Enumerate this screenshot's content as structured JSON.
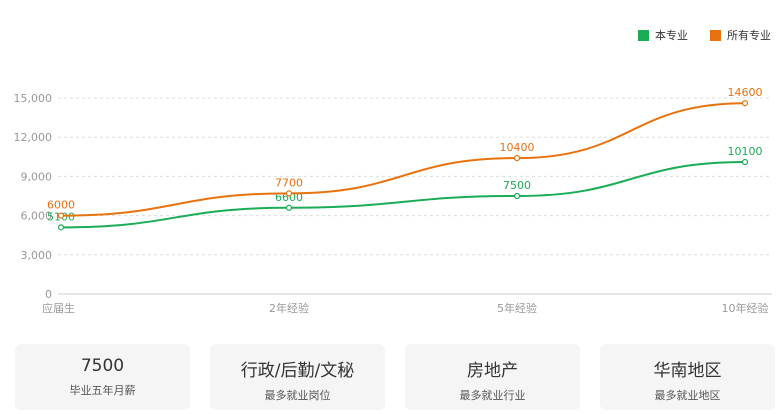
{
  "colors": {
    "series_this": "#1bad56",
    "series_all": "#e8720f",
    "grid": "#dddddd",
    "axis_text": "#999999"
  },
  "legend": {
    "items": [
      {
        "label": "本专业",
        "color": "#1bad56"
      },
      {
        "label": "所有专业",
        "color": "#e8720f"
      }
    ]
  },
  "chart_data": {
    "type": "line",
    "categories": [
      "应届生",
      "2年经验",
      "5年经验",
      "10年经验"
    ],
    "ylim": [
      0,
      15000
    ],
    "yticks": [
      0,
      3000,
      6000,
      9000,
      12000,
      15000
    ],
    "ytick_labels": [
      "0",
      "3,000",
      "6,000",
      "9,000",
      "12,000",
      "15,000"
    ],
    "grid": true,
    "legend_position": "top-right",
    "series": [
      {
        "name": "本专业",
        "color": "#1bad56",
        "values": [
          5100,
          6600,
          7500,
          10100
        ]
      },
      {
        "name": "所有专业",
        "color": "#e8720f",
        "values": [
          6000,
          7700,
          10400,
          14600
        ]
      }
    ]
  },
  "cards": [
    {
      "value": "7500",
      "label": "毕业五年月薪"
    },
    {
      "value": "行政/后勤/文秘",
      "label": "最多就业岗位"
    },
    {
      "value": "房地产",
      "label": "最多就业行业"
    },
    {
      "value": "华南地区",
      "label": "最多就业地区"
    }
  ]
}
